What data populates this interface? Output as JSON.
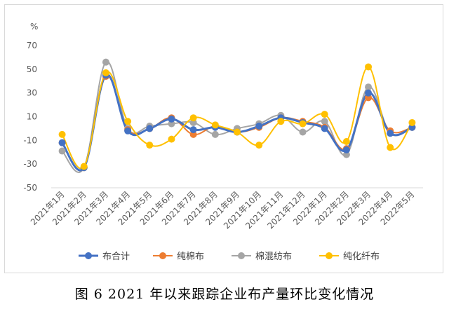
{
  "caption": "图 6   2021 年以来跟踪企业布产量环比变化情况",
  "chart_data": {
    "type": "line",
    "title": "",
    "ylabel": "%",
    "xlabel": "",
    "ylim": [
      -50,
      70
    ],
    "yticks": [
      70,
      50,
      30,
      10,
      -10,
      -30,
      -50
    ],
    "categories": [
      "2021年1月",
      "2021年2月",
      "2021年3月",
      "2021年4月",
      "2021年5月",
      "2021年6月",
      "2021年7月",
      "2021年8月",
      "2021年9月",
      "2021年10月",
      "2021年11月",
      "2021年12月",
      "2022年1月",
      "2022年2月",
      "2022年3月",
      "2022年4月",
      "2022年5月"
    ],
    "series": [
      {
        "name": "布合计",
        "color": "#4472C4",
        "values": [
          -12,
          -33,
          45,
          -2,
          0,
          8,
          -1,
          1,
          -3,
          2,
          9,
          5,
          0,
          -18,
          30,
          -4,
          1
        ]
      },
      {
        "name": "纯棉布",
        "color": "#ED7D31",
        "values": [
          -12,
          -33,
          44,
          -1,
          0,
          9,
          -5,
          2,
          -3,
          1,
          9,
          6,
          1,
          -17,
          26,
          -2,
          1
        ]
      },
      {
        "name": "棉混纺布",
        "color": "#A5A5A5",
        "values": [
          -19,
          -33,
          56,
          0,
          2,
          4,
          5,
          -5,
          0,
          4,
          11,
          -3,
          6,
          -22,
          35,
          -4,
          1
        ]
      },
      {
        "name": "纯化纤布",
        "color": "#FFC000",
        "values": [
          -5,
          -32,
          47,
          6,
          -14,
          -9,
          9,
          3,
          -3,
          -14,
          6,
          4,
          12,
          -11,
          52,
          -16,
          5
        ]
      }
    ],
    "legend_position": "bottom",
    "grid": false
  }
}
